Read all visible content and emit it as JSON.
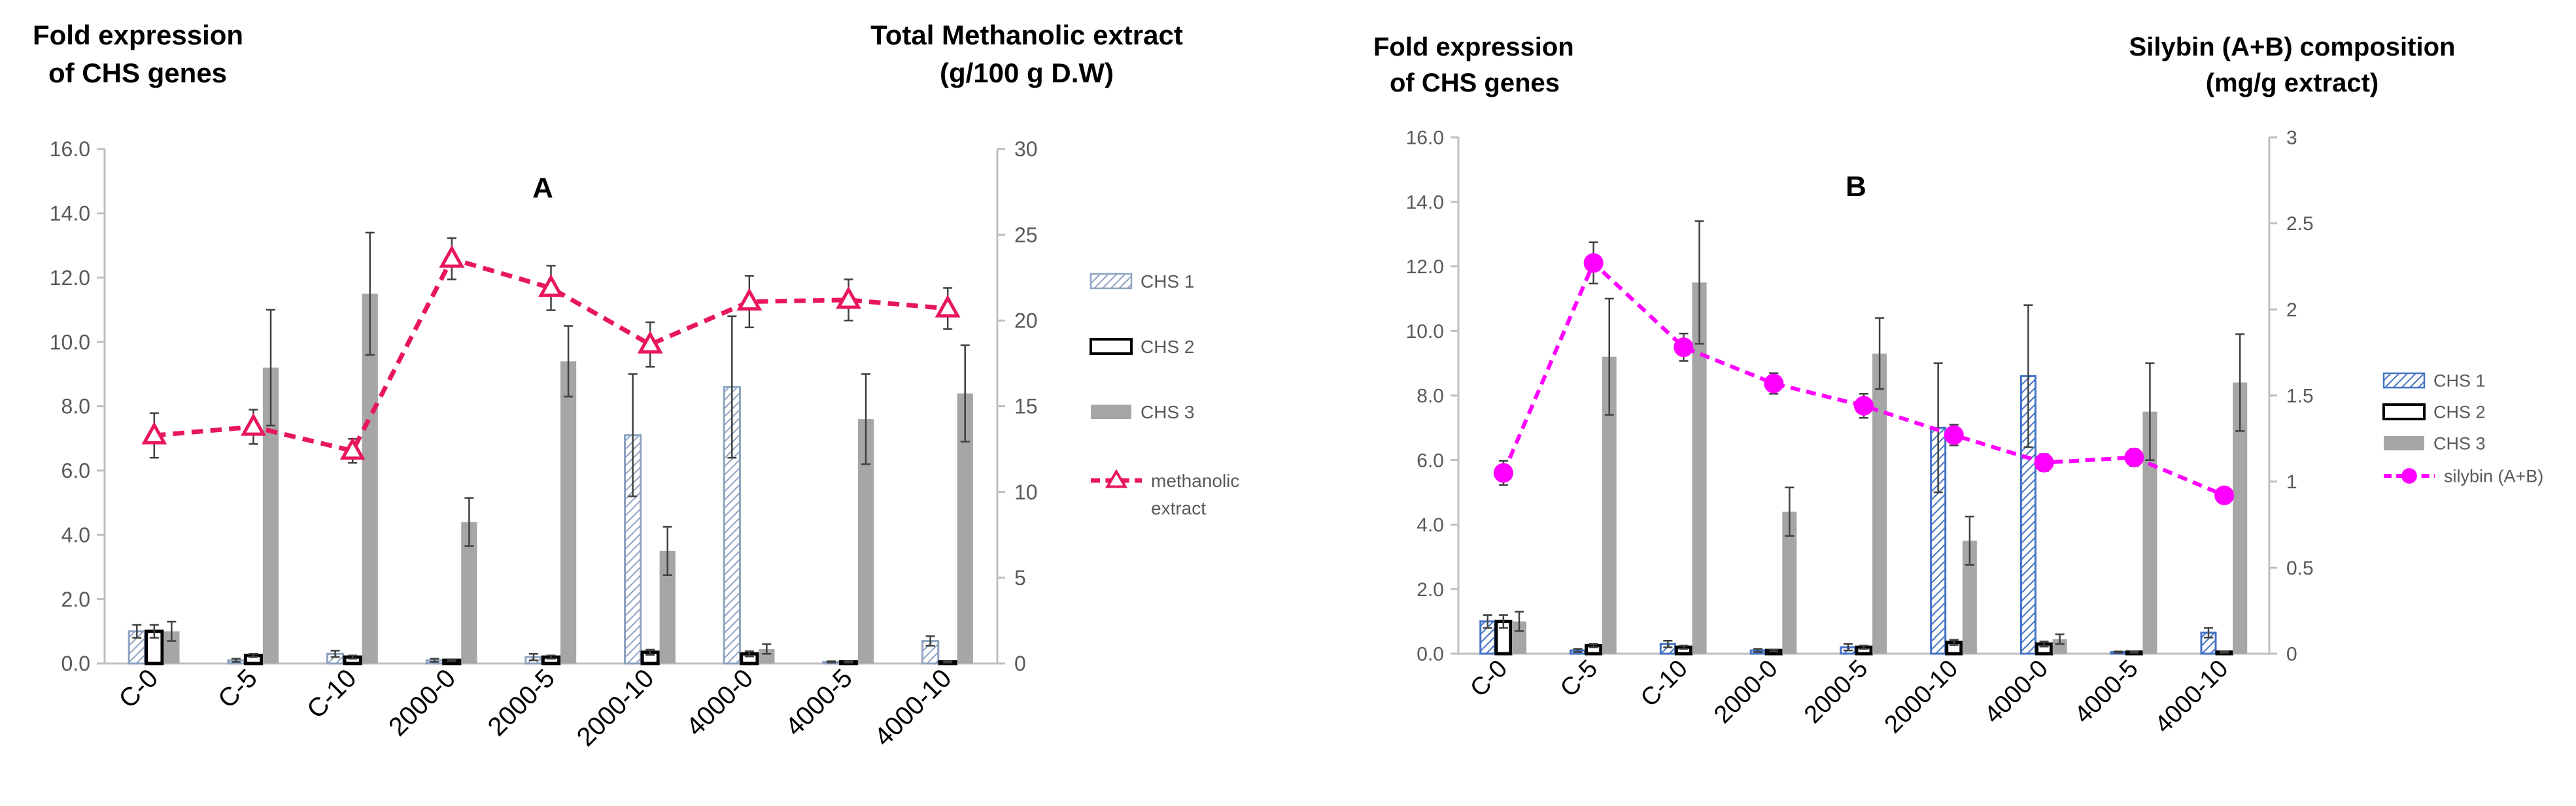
{
  "chart_data": [
    {
      "id": "A",
      "type": "bar+line",
      "panel_label": "A",
      "left_title": [
        "Fold expression",
        "of CHS genes"
      ],
      "right_title": [
        "Total Methanolic extract",
        "(g/100 g D.W)"
      ],
      "categories": [
        "C-0",
        "C-5",
        "C-10",
        "2000-0",
        "2000-5",
        "2000-10",
        "4000-0",
        "4000-5",
        "4000-10"
      ],
      "ylim": [
        0,
        16
      ],
      "yticks": [
        "0.0",
        "2.0",
        "4.0",
        "6.0",
        "8.0",
        "10.0",
        "12.0",
        "14.0",
        "16.0"
      ],
      "y2lim": [
        0,
        30
      ],
      "y2ticks": [
        "0",
        "5",
        "10",
        "15",
        "20",
        "25",
        "30"
      ],
      "series": [
        {
          "name": "CHS 1",
          "style": "hatch",
          "values": [
            1.0,
            0.1,
            0.3,
            0.1,
            0.2,
            7.1,
            8.6,
            0.05,
            0.7
          ],
          "errors": [
            0.2,
            0.05,
            0.1,
            0.05,
            0.1,
            1.9,
            2.2,
            0.02,
            0.15
          ]
        },
        {
          "name": "CHS 2",
          "style": "outline",
          "values": [
            1.0,
            0.25,
            0.2,
            0.1,
            0.2,
            0.35,
            0.3,
            0.05,
            0.05
          ],
          "errors": [
            0.2,
            0.05,
            0.05,
            0.03,
            0.05,
            0.08,
            0.08,
            0.02,
            0.02
          ]
        },
        {
          "name": "CHS 3",
          "style": "solid",
          "values": [
            1.0,
            9.2,
            11.5,
            4.4,
            9.4,
            3.5,
            0.45,
            7.6,
            8.4
          ],
          "errors": [
            0.3,
            1.8,
            1.9,
            0.75,
            1.1,
            0.75,
            0.15,
            1.4,
            1.5
          ]
        }
      ],
      "line": {
        "name": "methanolic extract",
        "legend_lines": [
          "methanolic",
          "extract"
        ],
        "marker": "triangle",
        "axis": "right",
        "values": [
          13.3,
          13.8,
          12.4,
          23.6,
          21.9,
          18.6,
          21.1,
          21.2,
          20.7
        ],
        "errors": [
          1.3,
          1.0,
          0.7,
          1.2,
          1.3,
          1.3,
          1.5,
          1.2,
          1.2
        ]
      },
      "colors": {
        "hatch_stroke": "#8ea3c0",
        "bar_solid": "#a6a6a6",
        "line": "#e8175d"
      }
    },
    {
      "id": "B",
      "type": "bar+line",
      "panel_label": "B",
      "left_title": [
        "Fold expression",
        "of CHS genes"
      ],
      "right_title": [
        "Silybin (A+B) composition",
        "(mg/g extract)"
      ],
      "categories": [
        "C-0",
        "C-5",
        "C-10",
        "2000-0",
        "2000-5",
        "2000-10",
        "4000-0",
        "4000-5",
        "4000-10"
      ],
      "ylim": [
        0,
        16
      ],
      "yticks": [
        "0.0",
        "2.0",
        "4.0",
        "6.0",
        "8.0",
        "10.0",
        "12.0",
        "14.0",
        "16.0"
      ],
      "y2lim": [
        0,
        3
      ],
      "y2ticks": [
        "0",
        "0.5",
        "1",
        "1.5",
        "2",
        "2.5",
        "3"
      ],
      "series": [
        {
          "name": "CHS 1",
          "style": "hatch",
          "values": [
            1.0,
            0.1,
            0.3,
            0.1,
            0.2,
            7.0,
            8.6,
            0.05,
            0.65
          ],
          "errors": [
            0.2,
            0.05,
            0.1,
            0.05,
            0.1,
            2.0,
            2.2,
            0.02,
            0.15
          ]
        },
        {
          "name": "CHS 2",
          "style": "outline",
          "values": [
            1.0,
            0.25,
            0.2,
            0.1,
            0.2,
            0.35,
            0.3,
            0.05,
            0.05
          ],
          "errors": [
            0.2,
            0.05,
            0.05,
            0.03,
            0.05,
            0.08,
            0.08,
            0.02,
            0.02
          ]
        },
        {
          "name": "CHS 3",
          "style": "solid",
          "values": [
            1.0,
            9.2,
            11.5,
            4.4,
            9.3,
            3.5,
            0.45,
            7.5,
            8.4
          ],
          "errors": [
            0.3,
            1.8,
            1.9,
            0.75,
            1.1,
            0.75,
            0.15,
            1.5,
            1.5
          ]
        }
      ],
      "line": {
        "name": "silybin (A+B)",
        "legend_lines": [
          "silybin (A+B)"
        ],
        "marker": "circle",
        "axis": "right",
        "values": [
          1.05,
          2.27,
          1.78,
          1.57,
          1.44,
          1.27,
          1.11,
          1.14,
          0.92
        ],
        "errors": [
          0.07,
          0.12,
          0.08,
          0.06,
          0.07,
          0.06,
          0.05,
          0.05,
          0.04
        ]
      },
      "colors": {
        "hatch_stroke": "#4472c4",
        "bar_solid": "#a6a6a6",
        "line": "#ff00ff"
      }
    }
  ]
}
